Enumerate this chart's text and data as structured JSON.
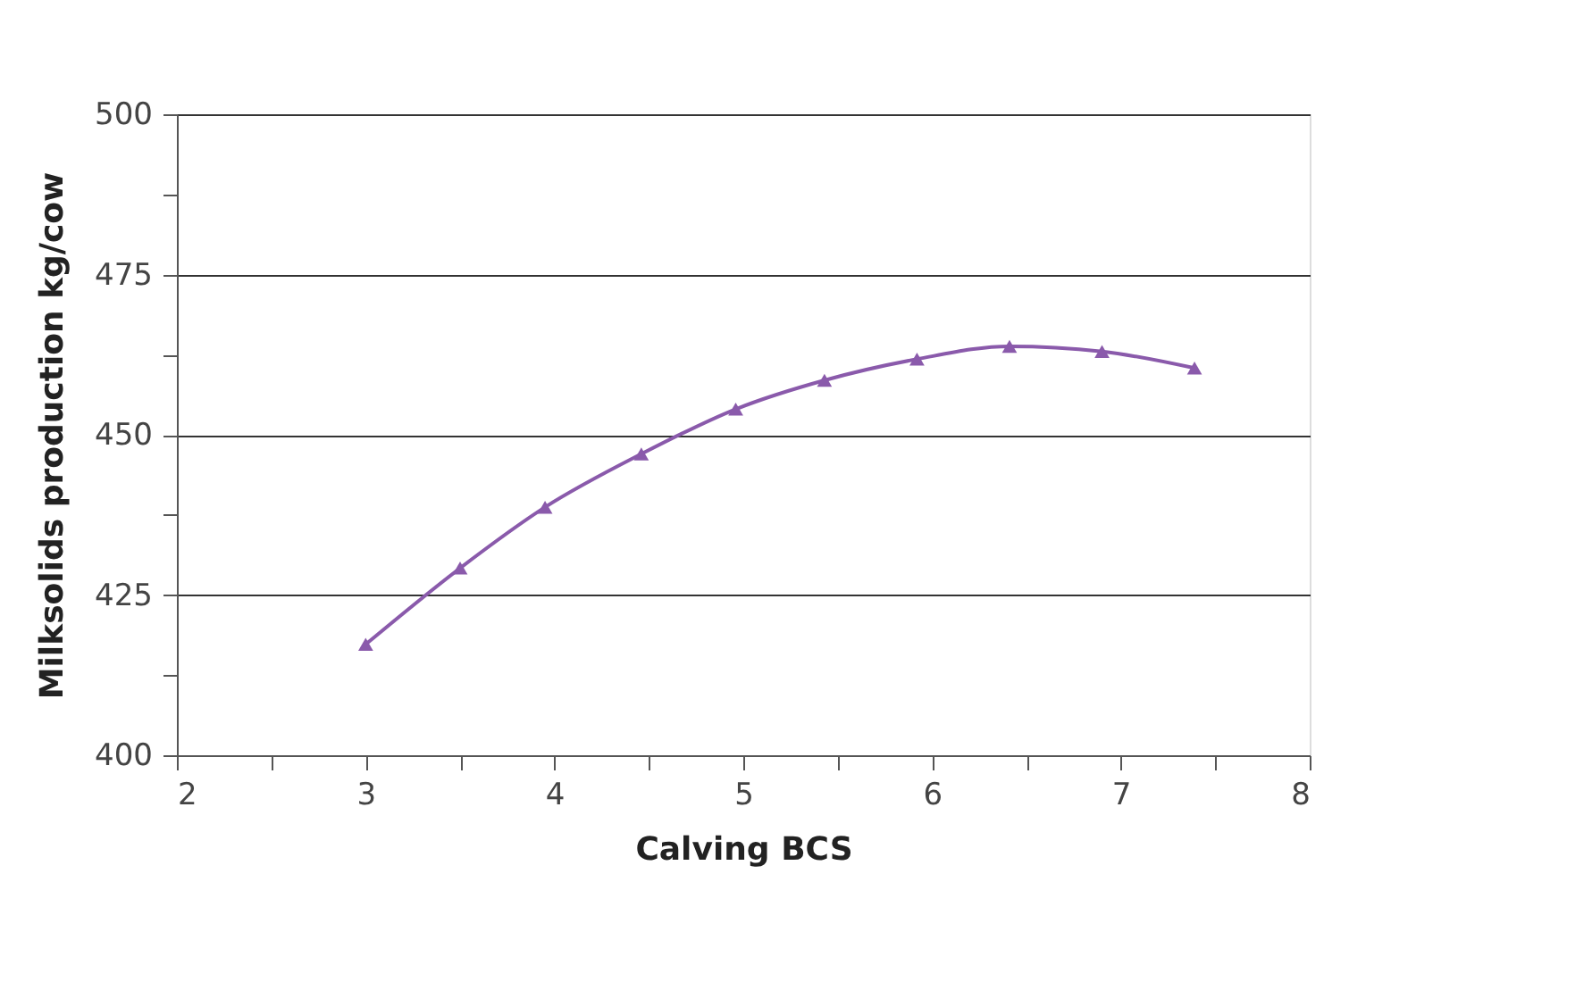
{
  "chart_data": {
    "type": "line",
    "xlabel": "Calving BCS",
    "ylabel": "Milksolids production kg/cow",
    "x": [
      3.0,
      3.5,
      3.95,
      4.46,
      4.96,
      5.43,
      5.92,
      6.41,
      6.9,
      7.39
    ],
    "series": [
      {
        "color": "#8a5aab",
        "values": [
          417.3,
          429.2,
          438.7,
          447,
          454,
          458.5,
          461.8,
          463.8,
          463,
          460.4
        ]
      }
    ],
    "xlim": [
      2,
      8
    ],
    "ylim": [
      400,
      500
    ],
    "xticks": [
      2,
      {
        "value": 2.5,
        "label": null
      },
      3,
      {
        "value": 3.5,
        "label": null
      },
      4,
      {
        "value": 4.5,
        "label": null
      },
      5,
      {
        "value": 5.5,
        "label": null
      },
      6,
      {
        "value": 6.5,
        "label": null
      },
      7,
      {
        "value": 7.5,
        "label": null
      },
      8
    ],
    "yticks": [
      400,
      {
        "value": 412.5,
        "label": null
      },
      425,
      {
        "value": 437.5,
        "label": null
      },
      450,
      {
        "value": 462.5,
        "label": null
      },
      475,
      {
        "value": 487.5,
        "label": null
      },
      500
    ],
    "grid": "y",
    "marker": "triangle",
    "line_style": "solid"
  }
}
